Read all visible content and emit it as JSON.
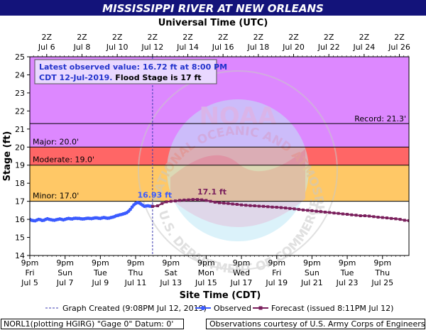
{
  "title": "MISSISSIPPI RIVER AT NEW ORLEANS",
  "top_axis": {
    "label": "Universal Time (UTC)",
    "ticks": [
      {
        "line1": "2Z",
        "line2": "Jul  6",
        "day": 0.958
      },
      {
        "line1": "2Z",
        "line2": "Jul  8",
        "day": 2.958
      },
      {
        "line1": "2Z",
        "line2": "Jul 10",
        "day": 4.958
      },
      {
        "line1": "2Z",
        "line2": "Jul 12",
        "day": 6.958
      },
      {
        "line1": "2Z",
        "line2": "Jul 14",
        "day": 8.958
      },
      {
        "line1": "2Z",
        "line2": "Jul 16",
        "day": 10.958
      },
      {
        "line1": "2Z",
        "line2": "Jul 18",
        "day": 12.958
      },
      {
        "line1": "2Z",
        "line2": "Jul 20",
        "day": 14.958
      },
      {
        "line1": "2Z",
        "line2": "Jul 22",
        "day": 16.958
      },
      {
        "line1": "2Z",
        "line2": "Jul 24",
        "day": 18.958
      },
      {
        "line1": "2Z",
        "line2": "Jul 26",
        "day": 20.958
      }
    ]
  },
  "bottom_axis": {
    "label": "Site Time (CDT)",
    "ticks": [
      {
        "line1": "9pm",
        "line2": "Fri",
        "line3": "Jul 5",
        "day": 0
      },
      {
        "line1": "9pm",
        "line2": "Sun",
        "line3": "Jul 7",
        "day": 2
      },
      {
        "line1": "9pm",
        "line2": "Tue",
        "line3": "Jul 9",
        "day": 4
      },
      {
        "line1": "9pm",
        "line2": "Thu",
        "line3": "Jul 11",
        "day": 6
      },
      {
        "line1": "9pm",
        "line2": "Sat",
        "line3": "Jul 13",
        "day": 8
      },
      {
        "line1": "9pm",
        "line2": "Mon",
        "line3": "Jul 15",
        "day": 10
      },
      {
        "line1": "9pm",
        "line2": "Wed",
        "line3": "Jul 17",
        "day": 12
      },
      {
        "line1": "9pm",
        "line2": "Fri",
        "line3": "Jul 19",
        "day": 14
      },
      {
        "line1": "9pm",
        "line2": "Sun",
        "line3": "Jul 21",
        "day": 16
      },
      {
        "line1": "9pm",
        "line2": "Tue",
        "line3": "Jul 23",
        "day": 18
      },
      {
        "line1": "9pm",
        "line2": "Thu",
        "line3": "Jul 25",
        "day": 20
      }
    ]
  },
  "chart_data": {
    "type": "line",
    "title": "MISSISSIPPI RIVER AT NEW ORLEANS",
    "xlabel": "Site Time (CDT)",
    "ylabel": "Stage (ft)",
    "x_unit": "days since 9pm CDT Fri Jul 5, 2019",
    "xlim": [
      0,
      21.5
    ],
    "ylim": [
      14,
      25
    ],
    "yticks": [
      14,
      15,
      16,
      17,
      18,
      19,
      20,
      21,
      22,
      23,
      24,
      25
    ],
    "grid": false,
    "categories_bands": [
      {
        "name": "Minor",
        "label": "Minor: 17.0'",
        "from": 17.0,
        "to": 19.0,
        "color": "#ffc866"
      },
      {
        "name": "Moderate",
        "label": "Moderate: 19.0'",
        "from": 19.0,
        "to": 20.0,
        "color": "#ff6666"
      },
      {
        "name": "Major",
        "label": "Major: 20.0'",
        "from": 20.0,
        "to": 25.0,
        "color": "#dd88ff"
      }
    ],
    "record": {
      "label": "Record: 21.3'",
      "value": 21.3
    },
    "graph_created_day": 6.96,
    "series": [
      {
        "name": "Observed",
        "color": "#3b5bff",
        "x": [
          0.0,
          0.1,
          0.2,
          0.3,
          0.4,
          0.5,
          0.6,
          0.7,
          0.8,
          0.9,
          1.0,
          1.1,
          1.2,
          1.3,
          1.4,
          1.5,
          1.6,
          1.7,
          1.8,
          1.9,
          2.0,
          2.1,
          2.2,
          2.3,
          2.4,
          2.5,
          2.6,
          2.7,
          2.8,
          2.9,
          3.0,
          3.1,
          3.2,
          3.3,
          3.4,
          3.5,
          3.6,
          3.7,
          3.8,
          3.9,
          4.0,
          4.1,
          4.2,
          4.3,
          4.4,
          4.5,
          4.6,
          4.7,
          4.8,
          4.9,
          5.0,
          5.1,
          5.2,
          5.3,
          5.4,
          5.5,
          5.6,
          5.7,
          5.8,
          5.9,
          6.0,
          6.1,
          6.2,
          6.3,
          6.4,
          6.5,
          6.6,
          6.7,
          6.8,
          6.9,
          6.96
        ],
        "y": [
          16.0,
          15.95,
          15.93,
          15.92,
          15.96,
          16.0,
          15.98,
          15.94,
          15.95,
          16.0,
          16.03,
          16.0,
          15.98,
          15.96,
          15.95,
          15.98,
          16.0,
          16.02,
          16.0,
          15.97,
          16.0,
          16.03,
          16.05,
          16.03,
          16.02,
          16.05,
          16.06,
          16.05,
          16.05,
          16.03,
          16.02,
          16.03,
          16.05,
          16.06,
          16.05,
          16.04,
          16.06,
          16.08,
          16.08,
          16.06,
          16.05,
          16.08,
          16.1,
          16.08,
          16.06,
          16.07,
          16.1,
          16.12,
          16.15,
          16.2,
          16.22,
          16.25,
          16.27,
          16.3,
          16.33,
          16.37,
          16.45,
          16.55,
          16.68,
          16.8,
          16.88,
          16.93,
          16.91,
          16.85,
          16.78,
          16.72,
          16.74,
          16.75,
          16.73,
          16.72,
          16.72
        ]
      },
      {
        "name": "Forecast",
        "color": "#7a1f5c",
        "x": [
          6.96,
          7.25,
          7.5,
          7.75,
          8.0,
          8.25,
          8.5,
          8.75,
          9.0,
          9.25,
          9.5,
          9.75,
          10.0,
          10.25,
          10.5,
          10.75,
          11.0,
          11.25,
          11.5,
          11.75,
          12.0,
          12.25,
          12.5,
          12.75,
          13.0,
          13.25,
          13.5,
          13.75,
          14.0,
          14.25,
          14.5,
          14.75,
          15.0,
          15.25,
          15.5,
          15.75,
          16.0,
          16.25,
          16.5,
          16.75,
          17.0,
          17.25,
          17.5,
          17.75,
          18.0,
          18.25,
          18.5,
          18.75,
          19.0,
          19.25,
          19.5,
          19.75,
          20.0,
          20.25,
          20.5,
          20.75,
          21.0,
          21.25,
          21.5
        ],
        "y": [
          16.72,
          16.75,
          16.88,
          16.97,
          17.0,
          17.02,
          17.05,
          17.07,
          17.08,
          17.1,
          17.1,
          17.08,
          17.05,
          17.0,
          16.95,
          16.92,
          16.9,
          16.88,
          16.85,
          16.83,
          16.8,
          16.78,
          16.76,
          16.75,
          16.73,
          16.72,
          16.7,
          16.68,
          16.67,
          16.65,
          16.63,
          16.6,
          16.58,
          16.55,
          16.52,
          16.5,
          16.48,
          16.45,
          16.43,
          16.4,
          16.38,
          16.35,
          16.33,
          16.3,
          16.28,
          16.25,
          16.23,
          16.2,
          16.2,
          16.18,
          16.15,
          16.12,
          16.1,
          16.08,
          16.05,
          16.03,
          16.0,
          15.95,
          15.93
        ]
      }
    ],
    "annotations": [
      {
        "label": "16.93 ft",
        "x": 6.1,
        "y": 16.93,
        "color": "#3b5bff"
      },
      {
        "label": "17.1 ft",
        "x": 9.5,
        "y": 17.1,
        "color": "#7a1f5c"
      }
    ]
  },
  "latest_box": {
    "line1": "Latest observed value: 16.72 ft at 8:00 PM",
    "line2_blue": "CDT 12-Jul-2019.",
    "line2_black": " Flood Stage is 17 ft"
  },
  "legend": {
    "graph_created": "Graph Created (9:08PM Jul 12, 2019)",
    "observed": "Observed",
    "forecast": "Forecast (issued 8:11PM Jul 12)"
  },
  "footer": {
    "left": "NORL1(plotting HGIRG) \"Gage 0\" Datum: 0'",
    "right": "Observations courtesy of U.S. Army Corps of Engineers"
  },
  "watermark": {
    "ring_text": "NATIONAL OCEANIC AND ATMOSPHERIC ADMINISTRATION",
    "bottom_text": "U.S. DEPARTMENT OF COMMERCE",
    "logo": "NOAA"
  }
}
